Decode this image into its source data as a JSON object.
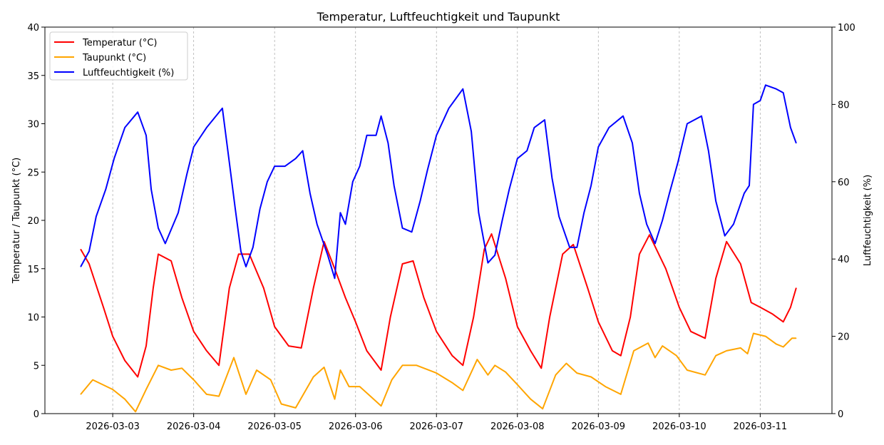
{
  "chart_data": {
    "type": "line",
    "title": "Temperatur, Luftfeuchtigkeit und Taupunkt",
    "ylabel_left": "Temperatur / Taupunkt (°C)",
    "ylabel_right": "Luftfeuchtigkeit (%)",
    "ylim_left": [
      0,
      40
    ],
    "ylim_right": [
      0,
      100
    ],
    "yticks_left": [
      0,
      5,
      10,
      15,
      20,
      25,
      30,
      35,
      40
    ],
    "yticks_right": [
      0,
      20,
      40,
      60,
      80,
      100
    ],
    "xticks": [
      "2026-03-03",
      "2026-03-04",
      "2026-03-05",
      "2026-03-06",
      "2026-03-07",
      "2026-03-08",
      "2026-03-09",
      "2026-03-10",
      "2026-03-11"
    ],
    "grid": "vertical dashed at x ticks",
    "legend_placement": "top-left",
    "series": [
      {
        "name": "Temperatur (°C)",
        "axis": "left",
        "color": "#ff0000",
        "points": [
          [
            "2026-03-02T14:30",
            17
          ],
          [
            "2026-03-02T17:00",
            15.5
          ],
          [
            "2026-03-02T21:15",
            11
          ],
          [
            "2026-03-03T00:00",
            8
          ],
          [
            "2026-03-03T03:35",
            5.5
          ],
          [
            "2026-03-03T07:25",
            3.8
          ],
          [
            "2026-03-03T09:55",
            7
          ],
          [
            "2026-03-03T12:00",
            13
          ],
          [
            "2026-03-03T13:30",
            16.5
          ],
          [
            "2026-03-03T17:20",
            15.8
          ],
          [
            "2026-03-03T20:30",
            12
          ],
          [
            "2026-03-04T00:00",
            8.5
          ],
          [
            "2026-03-04T03:50",
            6.5
          ],
          [
            "2026-03-04T07:30",
            5
          ],
          [
            "2026-03-04T10:35",
            13
          ],
          [
            "2026-03-04T13:20",
            16.5
          ],
          [
            "2026-03-04T16:30",
            16.5
          ],
          [
            "2026-03-04T20:45",
            13
          ],
          [
            "2026-03-05T00:00",
            9
          ],
          [
            "2026-03-05T04:10",
            7
          ],
          [
            "2026-03-05T07:55",
            6.8
          ],
          [
            "2026-03-05T11:30",
            13
          ],
          [
            "2026-03-05T14:40",
            17.8
          ],
          [
            "2026-03-05T17:50",
            15
          ],
          [
            "2026-03-05T21:00",
            12
          ],
          [
            "2026-03-06T00:00",
            9.5
          ],
          [
            "2026-03-06T03:20",
            6.5
          ],
          [
            "2026-03-06T07:35",
            4.5
          ],
          [
            "2026-03-06T10:20",
            10
          ],
          [
            "2026-03-06T13:55",
            15.5
          ],
          [
            "2026-03-06T17:05",
            15.8
          ],
          [
            "2026-03-06T20:15",
            12
          ],
          [
            "2026-03-07T00:00",
            8.5
          ],
          [
            "2026-03-07T04:40",
            6
          ],
          [
            "2026-03-07T07:50",
            5
          ],
          [
            "2026-03-07T11:00",
            10
          ],
          [
            "2026-03-07T14:10",
            17
          ],
          [
            "2026-03-07T16:20",
            18.6
          ],
          [
            "2026-03-07T20:30",
            14
          ],
          [
            "2026-03-08T00:00",
            9
          ],
          [
            "2026-03-08T03:55",
            6.5
          ],
          [
            "2026-03-08T07:05",
            4.7
          ],
          [
            "2026-03-08T09:35",
            10
          ],
          [
            "2026-03-08T13:25",
            16.5
          ],
          [
            "2026-03-08T16:35",
            17.5
          ],
          [
            "2026-03-08T20:50",
            13
          ],
          [
            "2026-03-09T00:00",
            9.5
          ],
          [
            "2026-03-09T04:10",
            6.5
          ],
          [
            "2026-03-09T06:40",
            6
          ],
          [
            "2026-03-09T09:30",
            10
          ],
          [
            "2026-03-09T12:10",
            16.5
          ],
          [
            "2026-03-09T15:10",
            18.5
          ],
          [
            "2026-03-09T20:00",
            15
          ],
          [
            "2026-03-10T00:00",
            11
          ],
          [
            "2026-03-10T03:25",
            8.5
          ],
          [
            "2026-03-10T07:40",
            7.8
          ],
          [
            "2026-03-10T10:50",
            14
          ],
          [
            "2026-03-10T14:00",
            17.8
          ],
          [
            "2026-03-10T18:10",
            15.5
          ],
          [
            "2026-03-10T21:20",
            11.5
          ],
          [
            "2026-03-11T00:00",
            11
          ],
          [
            "2026-03-11T03:40",
            10.3
          ],
          [
            "2026-03-11T06:50",
            9.5
          ],
          [
            "2026-03-11T09:00",
            11
          ],
          [
            "2026-03-11T10:40",
            13
          ]
        ]
      },
      {
        "name": "Taupunkt (°C)",
        "axis": "left",
        "color": "#ffa500",
        "points": [
          [
            "2026-03-02T14:30",
            2
          ],
          [
            "2026-03-02T18:05",
            3.5
          ],
          [
            "2026-03-03T00:00",
            2.5
          ],
          [
            "2026-03-03T03:35",
            1.5
          ],
          [
            "2026-03-03T06:45",
            0.2
          ],
          [
            "2026-03-03T09:55",
            2.5
          ],
          [
            "2026-03-03T13:30",
            5
          ],
          [
            "2026-03-03T17:20",
            4.5
          ],
          [
            "2026-03-03T20:30",
            4.7
          ],
          [
            "2026-03-04T00:00",
            3.5
          ],
          [
            "2026-03-04T03:50",
            2
          ],
          [
            "2026-03-04T07:30",
            1.8
          ],
          [
            "2026-03-04T11:55",
            5.8
          ],
          [
            "2026-03-04T15:30",
            2
          ],
          [
            "2026-03-04T18:40",
            4.5
          ],
          [
            "2026-03-04T22:50",
            3.5
          ],
          [
            "2026-03-05T02:00",
            1
          ],
          [
            "2026-03-05T06:15",
            0.6
          ],
          [
            "2026-03-05T11:30",
            3.8
          ],
          [
            "2026-03-05T14:40",
            4.8
          ],
          [
            "2026-03-05T17:50",
            1.5
          ],
          [
            "2026-03-05T19:30",
            4.5
          ],
          [
            "2026-03-05T22:05",
            2.8
          ],
          [
            "2026-03-06T01:15",
            2.8
          ],
          [
            "2026-03-06T04:25",
            1.8
          ],
          [
            "2026-03-06T07:35",
            0.8
          ],
          [
            "2026-03-06T10:45",
            3.5
          ],
          [
            "2026-03-06T13:55",
            5
          ],
          [
            "2026-03-06T18:05",
            5
          ],
          [
            "2026-03-07T00:00",
            4.2
          ],
          [
            "2026-03-07T04:40",
            3.2
          ],
          [
            "2026-03-07T07:50",
            2.4
          ],
          [
            "2026-03-07T12:05",
            5.6
          ],
          [
            "2026-03-07T15:15",
            4
          ],
          [
            "2026-03-07T17:20",
            5
          ],
          [
            "2026-03-07T20:30",
            4.3
          ],
          [
            "2026-03-08T00:00",
            3
          ],
          [
            "2026-03-08T03:55",
            1.5
          ],
          [
            "2026-03-08T07:30",
            0.5
          ],
          [
            "2026-03-08T11:20",
            4
          ],
          [
            "2026-03-08T14:30",
            5.2
          ],
          [
            "2026-03-08T17:40",
            4.2
          ],
          [
            "2026-03-08T21:50",
            3.8
          ],
          [
            "2026-03-09T02:05",
            2.8
          ],
          [
            "2026-03-09T06:40",
            2
          ],
          [
            "2026-03-09T10:30",
            6.5
          ],
          [
            "2026-03-09T14:45",
            7.3
          ],
          [
            "2026-03-09T16:50",
            5.8
          ],
          [
            "2026-03-09T19:00",
            7
          ],
          [
            "2026-03-09T23:10",
            6
          ],
          [
            "2026-03-10T02:20",
            4.5
          ],
          [
            "2026-03-10T07:40",
            4
          ],
          [
            "2026-03-10T10:50",
            6
          ],
          [
            "2026-03-10T14:00",
            6.5
          ],
          [
            "2026-03-10T18:10",
            6.8
          ],
          [
            "2026-03-10T20:15",
            6.2
          ],
          [
            "2026-03-10T22:00",
            8.3
          ],
          [
            "2026-03-11T01:35",
            8
          ],
          [
            "2026-03-11T04:45",
            7.2
          ],
          [
            "2026-03-11T06:50",
            6.9
          ],
          [
            "2026-03-11T09:25",
            7.8
          ],
          [
            "2026-03-11T10:40",
            7.8
          ]
        ]
      },
      {
        "name": "Luftfeuchtigkeit (%)",
        "axis": "right",
        "color": "#0000ff",
        "points": [
          [
            "2026-03-02T14:30",
            38
          ],
          [
            "2026-03-02T17:00",
            42
          ],
          [
            "2026-03-02T19:05",
            51
          ],
          [
            "2026-03-02T21:55",
            58
          ],
          [
            "2026-03-03T00:25",
            66
          ],
          [
            "2026-03-03T03:35",
            74
          ],
          [
            "2026-03-03T07:25",
            78
          ],
          [
            "2026-03-03T09:55",
            72
          ],
          [
            "2026-03-03T11:25",
            58
          ],
          [
            "2026-03-03T13:30",
            48
          ],
          [
            "2026-03-03T15:35",
            44
          ],
          [
            "2026-03-03T19:25",
            52
          ],
          [
            "2026-03-03T22:00",
            62
          ],
          [
            "2026-03-04T00:00",
            69
          ],
          [
            "2026-03-04T03:50",
            74
          ],
          [
            "2026-03-04T08:30",
            79
          ],
          [
            "2026-03-04T10:35",
            65
          ],
          [
            "2026-03-04T12:20",
            53
          ],
          [
            "2026-03-04T14:00",
            42
          ],
          [
            "2026-03-04T15:30",
            38
          ],
          [
            "2026-03-04T17:35",
            43
          ],
          [
            "2026-03-04T19:40",
            53
          ],
          [
            "2026-03-04T21:50",
            60
          ],
          [
            "2026-03-05T00:00",
            64
          ],
          [
            "2026-03-05T03:05",
            64
          ],
          [
            "2026-03-05T06:15",
            66
          ],
          [
            "2026-03-05T08:20",
            68
          ],
          [
            "2026-03-05T10:30",
            57
          ],
          [
            "2026-03-05T12:35",
            49
          ],
          [
            "2026-03-05T15:45",
            41
          ],
          [
            "2026-03-05T17:50",
            35
          ],
          [
            "2026-03-05T19:30",
            52
          ],
          [
            "2026-03-05T21:00",
            49
          ],
          [
            "2026-03-05T23:10",
            60
          ],
          [
            "2026-03-06T01:15",
            64
          ],
          [
            "2026-03-06T03:20",
            72
          ],
          [
            "2026-03-06T06:05",
            72
          ],
          [
            "2026-03-06T07:35",
            77
          ],
          [
            "2026-03-06T09:40",
            70
          ],
          [
            "2026-03-06T11:25",
            59
          ],
          [
            "2026-03-06T13:55",
            48
          ],
          [
            "2026-03-06T16:40",
            47
          ],
          [
            "2026-03-06T19:10",
            55
          ],
          [
            "2026-03-06T21:20",
            63
          ],
          [
            "2026-03-07T00:00",
            72
          ],
          [
            "2026-03-07T03:40",
            79
          ],
          [
            "2026-03-07T07:50",
            84
          ],
          [
            "2026-03-07T10:20",
            73
          ],
          [
            "2026-03-07T12:30",
            52
          ],
          [
            "2026-03-07T15:15",
            39
          ],
          [
            "2026-03-07T17:20",
            41
          ],
          [
            "2026-03-07T19:30",
            50
          ],
          [
            "2026-03-07T21:35",
            58
          ],
          [
            "2026-03-08T00:00",
            66
          ],
          [
            "2026-03-08T02:50",
            68
          ],
          [
            "2026-03-08T05:00",
            74
          ],
          [
            "2026-03-08T08:05",
            76
          ],
          [
            "2026-03-08T10:15",
            61
          ],
          [
            "2026-03-08T12:20",
            51
          ],
          [
            "2026-03-08T15:30",
            43
          ],
          [
            "2026-03-08T17:40",
            43
          ],
          [
            "2026-03-08T19:45",
            52
          ],
          [
            "2026-03-08T21:50",
            59
          ],
          [
            "2026-03-09T00:00",
            69
          ],
          [
            "2026-03-09T03:10",
            74
          ],
          [
            "2026-03-09T07:20",
            77
          ],
          [
            "2026-03-09T10:05",
            70
          ],
          [
            "2026-03-09T12:10",
            57
          ],
          [
            "2026-03-09T14:20",
            49
          ],
          [
            "2026-03-09T16:50",
            44
          ],
          [
            "2026-03-09T19:00",
            50
          ],
          [
            "2026-03-09T21:05",
            57
          ],
          [
            "2026-03-09T23:35",
            65
          ],
          [
            "2026-03-10T02:20",
            75
          ],
          [
            "2026-03-10T06:35",
            77
          ],
          [
            "2026-03-10T08:40",
            68
          ],
          [
            "2026-03-10T10:50",
            55
          ],
          [
            "2026-03-10T13:30",
            46
          ],
          [
            "2026-03-10T16:05",
            49
          ],
          [
            "2026-03-10T19:15",
            57
          ],
          [
            "2026-03-10T20:45",
            59
          ],
          [
            "2026-03-10T22:00",
            80
          ],
          [
            "2026-03-11T00:00",
            81
          ],
          [
            "2026-03-11T01:35",
            85
          ],
          [
            "2026-03-11T04:45",
            84
          ],
          [
            "2026-03-11T06:50",
            83
          ],
          [
            "2026-03-11T09:00",
            74
          ],
          [
            "2026-03-11T10:40",
            70
          ]
        ]
      }
    ]
  }
}
